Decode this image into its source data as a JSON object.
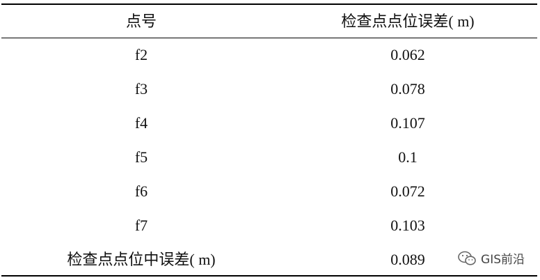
{
  "table": {
    "header": [
      "点号",
      "检查点点位误差( m)"
    ],
    "rows": [
      [
        "f2",
        "0.062"
      ],
      [
        "f3",
        "0.078"
      ],
      [
        "f4",
        "0.107"
      ],
      [
        "f5",
        "0.1"
      ],
      [
        "f6",
        "0.072"
      ],
      [
        "f7",
        "0.103"
      ],
      [
        "检查点点位中误差( m)",
        "0.089"
      ]
    ]
  },
  "watermark": "GIS前沿"
}
